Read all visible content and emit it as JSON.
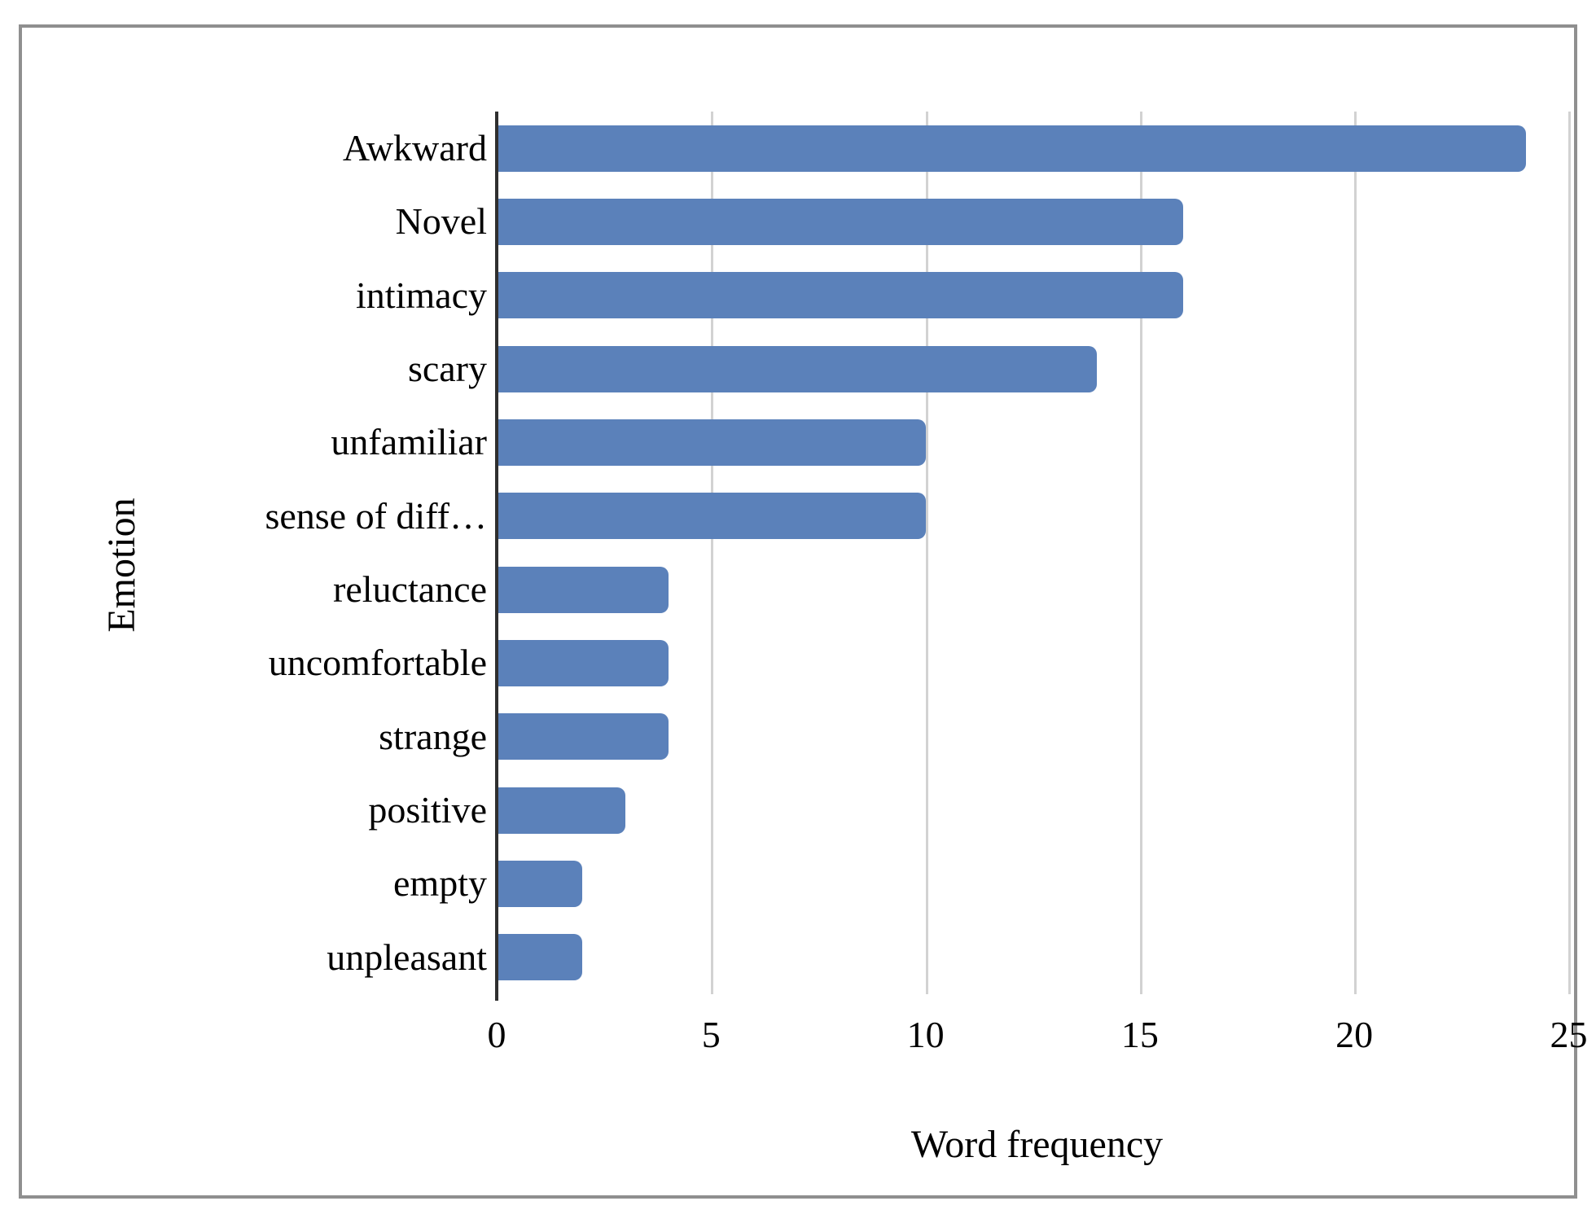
{
  "chart_data": {
    "type": "bar",
    "orientation": "horizontal",
    "title": "",
    "xlabel": "Word frequency",
    "ylabel": "Emotion",
    "categories": [
      "Awkward",
      "Novel",
      "intimacy",
      "scary",
      "unfamiliar",
      "sense of diff…",
      "reluctance",
      "uncomfortable",
      "strange",
      "positive",
      "empty",
      "unpleasant"
    ],
    "values": [
      24,
      16,
      16,
      14,
      10,
      10,
      4,
      4,
      4,
      3,
      2,
      2
    ],
    "xlim": [
      0,
      25
    ],
    "xticks": [
      0,
      5,
      10,
      15,
      20,
      25
    ],
    "grid": "vertical-gridlines-at-xticks",
    "legend": "none",
    "colors": {
      "bar": "#5b81ba",
      "gridline": "#d2d2d2",
      "axis_line": "#2f2f2f",
      "frame_border": "#8f8f8f",
      "text": "#000000",
      "background": "#ffffff"
    }
  }
}
